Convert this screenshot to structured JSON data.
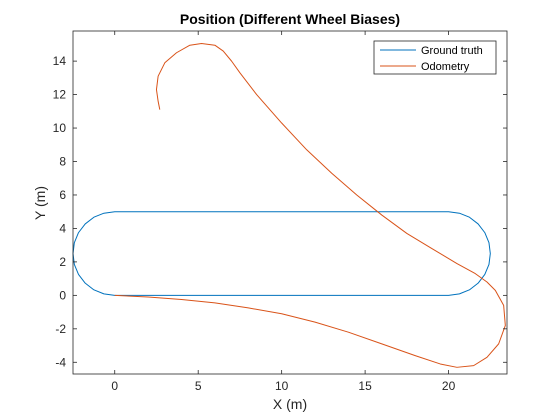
{
  "chart_data": {
    "type": "line",
    "title": "Position (Different Wheel Biases)",
    "xlabel": "X (m)",
    "ylabel": "Y (m)",
    "xlim": [
      -2.5,
      23.5
    ],
    "ylim": [
      -4.7,
      15.8
    ],
    "xticks": [
      0,
      5,
      10,
      15,
      20
    ],
    "yticks": [
      -4,
      -2,
      0,
      2,
      4,
      6,
      8,
      10,
      12,
      14
    ],
    "grid": false,
    "legend_position": "top-right",
    "series": [
      {
        "name": "Ground truth",
        "color": "#0072BD",
        "x": [
          0,
          5,
          10,
          15,
          20,
          20.65,
          21.25,
          21.77,
          22.17,
          22.42,
          22.5,
          22.42,
          22.17,
          21.77,
          21.25,
          20.65,
          20,
          15,
          10,
          5,
          0,
          -0.65,
          -1.25,
          -1.77,
          -2.17,
          -2.42,
          -2.5,
          -2.42,
          -2.17,
          -1.77,
          -1.25,
          -0.65,
          0
        ],
        "y": [
          0,
          0,
          0,
          0,
          0,
          0.09,
          0.33,
          0.73,
          1.25,
          1.85,
          2.5,
          3.15,
          3.75,
          4.27,
          4.67,
          4.91,
          5,
          5,
          5,
          5,
          5,
          4.91,
          4.67,
          4.27,
          3.75,
          3.15,
          2.5,
          1.85,
          1.25,
          0.73,
          0.33,
          0.09,
          0
        ]
      },
      {
        "name": "Odometry",
        "color": "#D95319",
        "x": [
          0,
          2,
          4,
          6,
          8,
          10,
          12,
          14,
          16,
          18,
          19.5,
          20.5,
          21.5,
          22.3,
          23,
          23.4,
          23.3,
          22.8,
          22.3,
          21.6,
          20.5,
          19,
          17.5,
          16,
          14.5,
          13,
          11.5,
          10,
          8.5,
          7.5,
          7,
          6.5,
          6,
          5.2,
          4.5,
          3.7,
          3,
          2.6,
          2.5,
          2.6,
          2.7
        ],
        "y": [
          0,
          -0.1,
          -0.25,
          -0.45,
          -0.75,
          -1.1,
          -1.6,
          -2.2,
          -2.9,
          -3.6,
          -4.1,
          -4.3,
          -4.2,
          -3.7,
          -2.9,
          -1.8,
          -0.6,
          0.3,
          0.8,
          1.3,
          1.9,
          2.8,
          3.7,
          4.8,
          6.0,
          7.3,
          8.7,
          10.3,
          12.0,
          13.3,
          14.0,
          14.6,
          14.95,
          15.05,
          14.95,
          14.5,
          13.9,
          13.1,
          12.3,
          11.6,
          11.1
        ]
      }
    ]
  }
}
